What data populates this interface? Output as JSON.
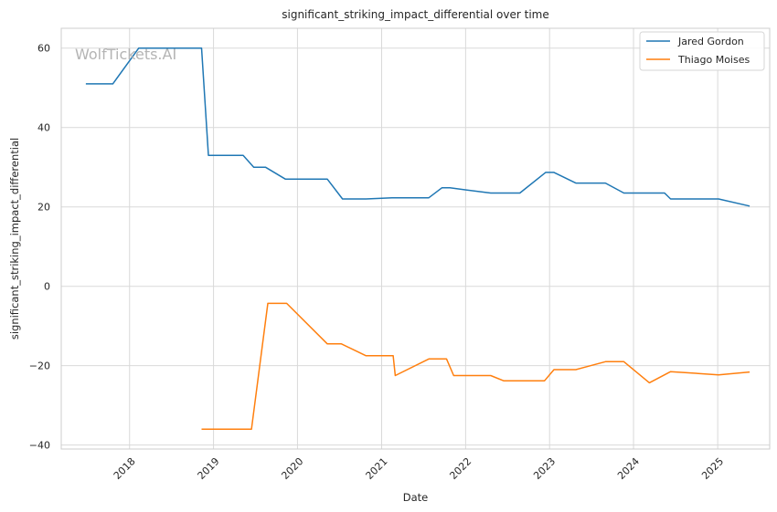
{
  "chart_data": {
    "type": "line",
    "title": "significant_striking_impact_differential over time",
    "xlabel": "Date",
    "ylabel": "significant_striking_impact_differential",
    "watermark": "WolfTickets.AI",
    "xlim": [
      "2017-03-10",
      "2025-08-15"
    ],
    "ylim": [
      -41,
      65
    ],
    "x_ticks": [
      "2018-01-01",
      "2019-01-01",
      "2020-01-01",
      "2021-01-01",
      "2022-01-01",
      "2023-01-01",
      "2024-01-01",
      "2025-01-01"
    ],
    "x_tick_labels": [
      "2018",
      "2019",
      "2020",
      "2021",
      "2022",
      "2023",
      "2024",
      "2025"
    ],
    "y_ticks": [
      -40,
      -20,
      0,
      20,
      40,
      60
    ],
    "y_tick_labels": [
      "−40",
      "−20",
      "0",
      "20",
      "40",
      "60"
    ],
    "grid": true,
    "legend_position": "top-right",
    "series": [
      {
        "name": "Jared Gordon",
        "color": "#1f77b4",
        "points": [
          [
            "2017-06-25",
            51
          ],
          [
            "2017-10-20",
            51
          ],
          [
            "2018-02-10",
            60
          ],
          [
            "2018-11-10",
            60
          ],
          [
            "2018-12-10",
            33
          ],
          [
            "2019-05-10",
            33
          ],
          [
            "2019-06-25",
            30
          ],
          [
            "2019-08-15",
            30
          ],
          [
            "2019-11-10",
            27
          ],
          [
            "2020-05-10",
            27
          ],
          [
            "2020-07-15",
            22
          ],
          [
            "2020-10-25",
            22
          ],
          [
            "2021-02-15",
            22.3
          ],
          [
            "2021-07-25",
            22.3
          ],
          [
            "2021-09-20",
            24.8
          ],
          [
            "2021-10-25",
            24.8
          ],
          [
            "2022-04-20",
            23.5
          ],
          [
            "2022-08-25",
            23.5
          ],
          [
            "2022-12-15",
            28.7
          ],
          [
            "2023-01-20",
            28.7
          ],
          [
            "2023-04-25",
            26
          ],
          [
            "2023-09-01",
            26
          ],
          [
            "2023-11-20",
            23.5
          ],
          [
            "2024-05-15",
            23.5
          ],
          [
            "2024-06-10",
            22
          ],
          [
            "2025-01-05",
            22
          ],
          [
            "2025-05-20",
            20.2
          ]
        ]
      },
      {
        "name": "Thiago Moises",
        "color": "#ff7f0e",
        "points": [
          [
            "2018-11-10",
            -36
          ],
          [
            "2019-06-15",
            -36
          ],
          [
            "2019-08-25",
            -4.3
          ],
          [
            "2019-11-15",
            -4.3
          ],
          [
            "2020-05-10",
            -14.5
          ],
          [
            "2020-07-10",
            -14.5
          ],
          [
            "2020-10-25",
            -17.5
          ],
          [
            "2021-02-20",
            -17.5
          ],
          [
            "2021-03-01",
            -22.5
          ],
          [
            "2021-07-25",
            -18.3
          ],
          [
            "2021-10-10",
            -18.3
          ],
          [
            "2021-11-10",
            -22.5
          ],
          [
            "2022-04-20",
            -22.5
          ],
          [
            "2022-06-15",
            -23.8
          ],
          [
            "2022-12-10",
            -23.8
          ],
          [
            "2023-01-20",
            -21
          ],
          [
            "2023-04-25",
            -21
          ],
          [
            "2023-09-01",
            -19
          ],
          [
            "2023-11-20",
            -19
          ],
          [
            "2024-03-10",
            -24.3
          ],
          [
            "2024-06-10",
            -21.5
          ],
          [
            "2025-01-05",
            -22.3
          ],
          [
            "2025-05-20",
            -21.6
          ]
        ]
      }
    ]
  }
}
